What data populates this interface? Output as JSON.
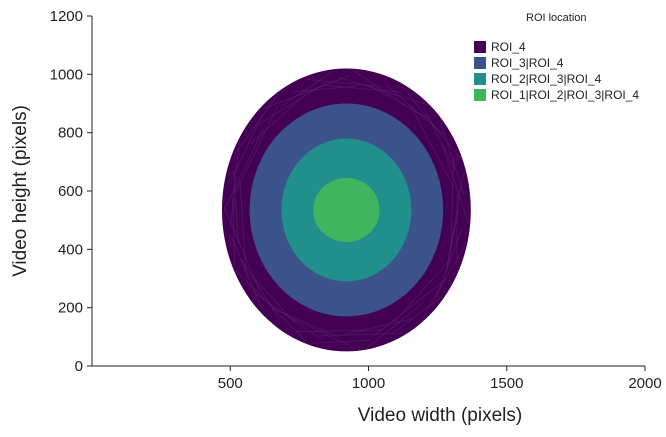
{
  "chart_data": {
    "type": "scatter",
    "title": "",
    "xlabel": "Video width (pixels)",
    "ylabel": "Video height (pixels)",
    "xlim": [
      0,
      2000
    ],
    "ylim": [
      0,
      1200
    ],
    "xticks": [
      500,
      1000,
      1500,
      2000
    ],
    "yticks": [
      0,
      200,
      400,
      600,
      800,
      1000,
      1200
    ],
    "x_tick_labels": [
      "500",
      "1000",
      "1500",
      "2000"
    ],
    "y_tick_labels": [
      "0",
      "200",
      "400",
      "600",
      "800",
      "1000",
      "1200"
    ],
    "grid": false,
    "legend_title": "ROI location",
    "legend_position": "top-right",
    "center": {
      "x": 920,
      "y": 535
    },
    "series": [
      {
        "name": "ROI_4",
        "color": "#440154",
        "radius_x": 450,
        "radius_y": 485
      },
      {
        "name": "ROI_3|ROI_4",
        "color": "#3b528b",
        "radius_x": 350,
        "radius_y": 365
      },
      {
        "name": "ROI_2|ROI_3|ROI_4",
        "color": "#21908c",
        "radius_x": 235,
        "radius_y": 245
      },
      {
        "name": "ROI_1|ROI_2|ROI_3|ROI_4",
        "color": "#3fb55f",
        "radius_x": 120,
        "radius_y": 110
      }
    ]
  }
}
